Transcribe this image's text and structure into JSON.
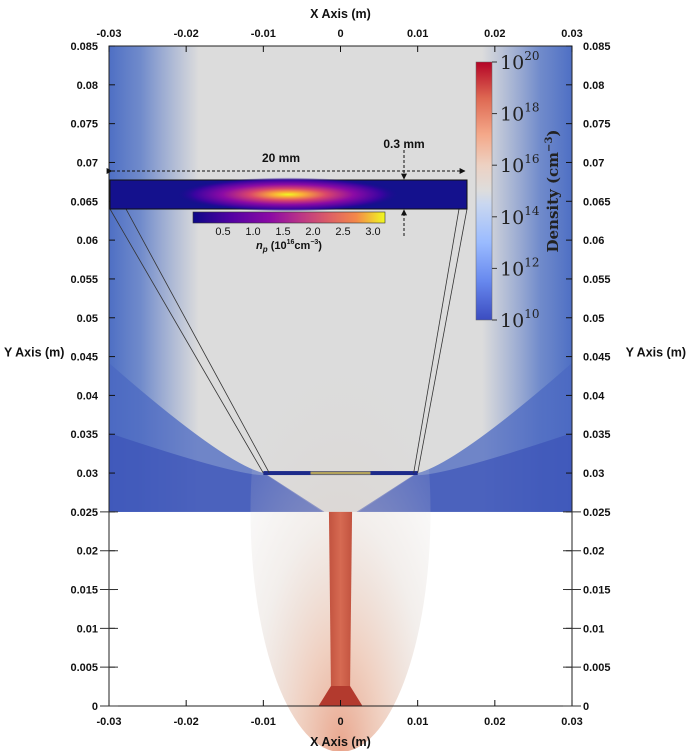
{
  "chart_data": {
    "type": "heatmap",
    "x_axis": {
      "title": "X Axis (m)",
      "range": [
        -0.03,
        0.03
      ],
      "ticks": [
        "-0.03",
        "-0.02",
        "-0.01",
        "0",
        "0.01",
        "0.02",
        "0.03"
      ]
    },
    "y_axis": {
      "title": "Y Axis (m)",
      "range": [
        0,
        0.085
      ],
      "ticks": [
        "0",
        "0.005",
        "0.01",
        "0.015",
        "0.02",
        "0.025",
        "0.03",
        "0.035",
        "0.04",
        "0.045",
        "0.05",
        "0.055",
        "0.06",
        "0.065",
        "0.07",
        "0.075",
        "0.08",
        "0.085"
      ]
    },
    "colorbar": {
      "label_main": "Density",
      "label_unit": "(cm",
      "label_exp": "−3",
      "label_close": ")",
      "scale": "log",
      "range": [
        10000000000.0,
        1e+20
      ],
      "tick_exponents": [
        "20",
        "18",
        "16",
        "14",
        "12",
        "10"
      ],
      "tick_base": "10",
      "colors": [
        "#3b4cc0",
        "#dddddd",
        "#b40426"
      ]
    },
    "field": {
      "nozzle_top_y": 0.025,
      "nozzle_half_width": 0.0015,
      "target_y": 0.03,
      "target_x_range": [
        -0.01,
        0.01
      ]
    },
    "inset": {
      "dimension_width": "20 mm",
      "dimension_thickness": "0.3 mm",
      "colorbar_ticks": [
        "0.5",
        "1.0",
        "1.5",
        "2.0",
        "2.5",
        "3.0"
      ],
      "colorbar_label_main": "n",
      "colorbar_label_sub": "p",
      "colorbar_label_unit": " (10",
      "colorbar_label_exp": "16",
      "colorbar_label_rest": "cm",
      "colorbar_label_exp2": "−3",
      "colorbar_label_close": ")",
      "colorbar_range": [
        0,
        3.2
      ]
    }
  }
}
